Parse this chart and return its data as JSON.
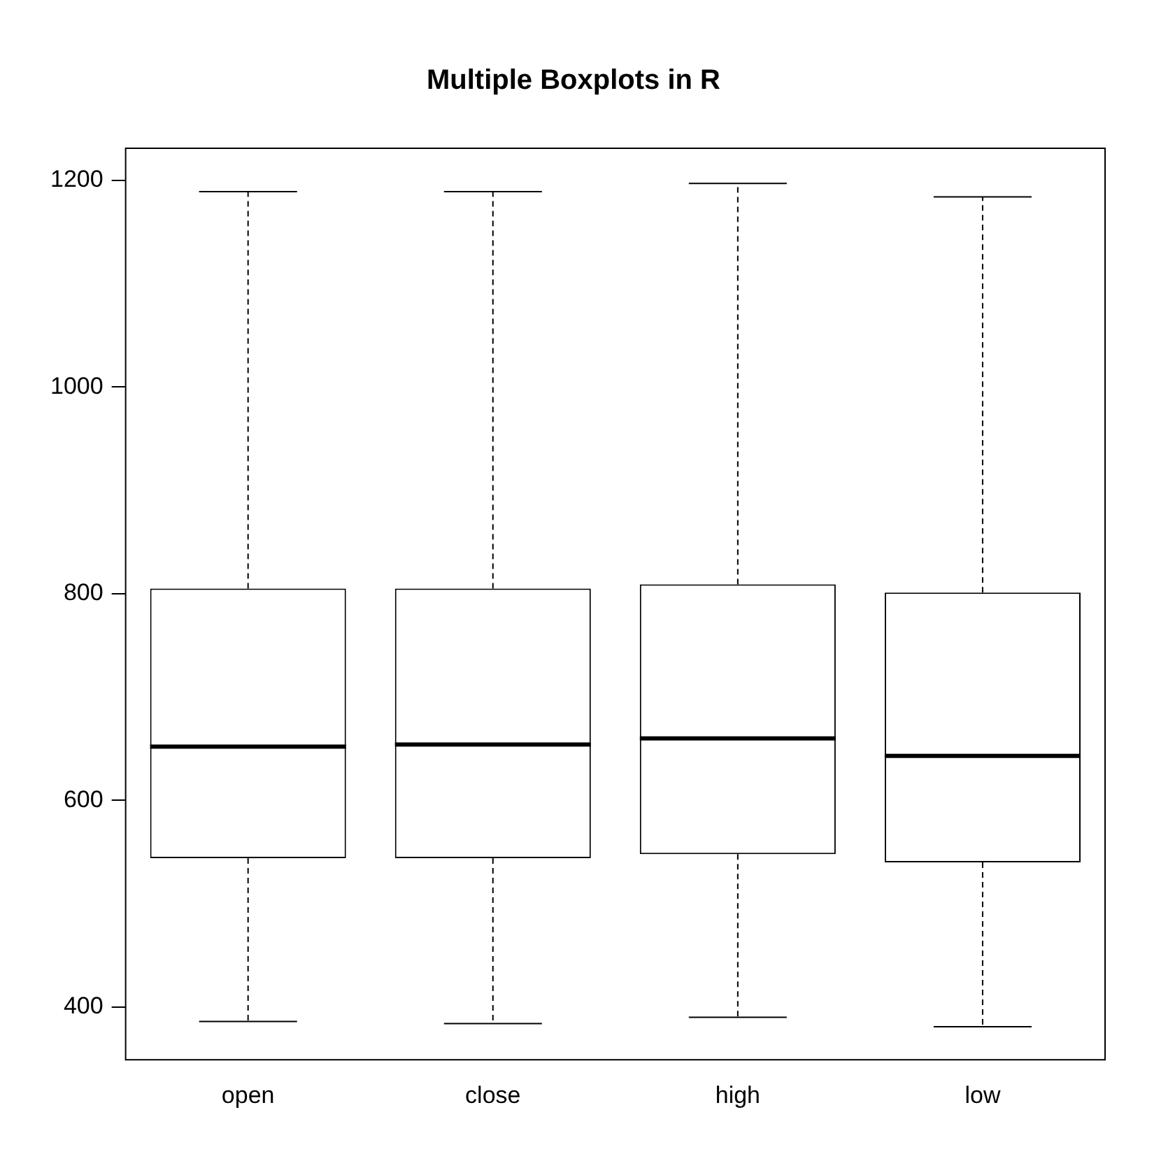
{
  "chart_data": {
    "type": "box",
    "title": "Multiple Boxplots in R",
    "categories": [
      "open",
      "close",
      "high",
      "low"
    ],
    "boxes": [
      {
        "low": 386,
        "q1": 544,
        "median": 652,
        "q3": 805,
        "high": 1189
      },
      {
        "low": 384,
        "q1": 544,
        "median": 654,
        "q3": 805,
        "high": 1189
      },
      {
        "low": 390,
        "q1": 548,
        "median": 660,
        "q3": 809,
        "high": 1197
      },
      {
        "low": 381,
        "q1": 540,
        "median": 643,
        "q3": 801,
        "high": 1184
      }
    ],
    "ylim": [
      349,
      1231
    ],
    "yticks": [
      400,
      600,
      800,
      1000,
      1200
    ],
    "grid": false,
    "legend": false
  }
}
